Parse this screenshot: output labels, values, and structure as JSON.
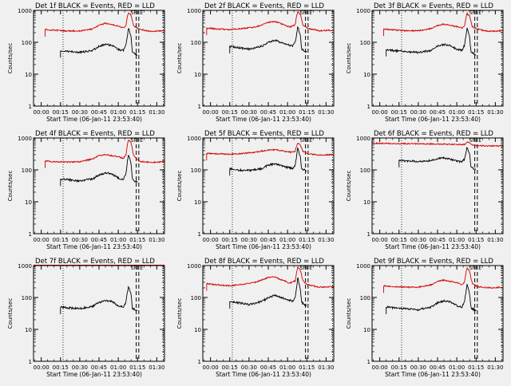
{
  "figure": {
    "background": "#f0f0f0",
    "colors": {
      "events": "#000000",
      "lld": "#d40000",
      "axes": "#000000"
    }
  },
  "chart_data": [
    {
      "type": "line",
      "title": "Det 1f BLACK = Events, RED = LLD",
      "xlabel": "Start Time (06-Jan-11 23:53:40)",
      "ylabel": "Counts/sec",
      "y_scale": "log",
      "ylim": [
        1,
        1000
      ],
      "y_ticks": [
        "1",
        "10",
        "100",
        "1000"
      ],
      "x_tick_labels": [
        "00:00",
        "00:15",
        "00:30",
        "00:45",
        "01:00",
        "01:15",
        "01:30"
      ],
      "xlim_minutes": [
        -6,
        96
      ],
      "marker_labels": [
        "SF",
        "E"
      ],
      "vertical_dotted_min": [
        17,
        95
      ],
      "vertical_dashed_min": [
        74,
        76
      ],
      "series": [
        {
          "name": "LLD",
          "color": "#d40000",
          "x": [
            3,
            10,
            20,
            30,
            40,
            45,
            50,
            60,
            64,
            66,
            67,
            68,
            70,
            72,
            76,
            85,
            96
          ],
          "y": [
            250,
            240,
            225,
            225,
            260,
            340,
            390,
            320,
            280,
            330,
            600,
            850,
            700,
            320,
            260,
            220,
            230
          ]
        },
        {
          "name": "Events",
          "color": "#000000",
          "x": [
            15,
            20,
            30,
            40,
            45,
            50,
            55,
            60,
            64,
            66,
            67,
            68,
            70,
            71,
            73,
            75
          ],
          "y": [
            55,
            52,
            48,
            55,
            75,
            85,
            80,
            60,
            55,
            80,
            150,
            280,
            140,
            50,
            45,
            40
          ]
        }
      ]
    },
    {
      "type": "line",
      "title": "Det 2f BLACK = Events, RED = LLD",
      "xlabel": "Start Time (06-Jan-11 23:53:40)",
      "ylabel": "Counts/sec",
      "y_scale": "log",
      "ylim": [
        1,
        1000
      ],
      "y_ticks": [
        "1",
        "10",
        "100",
        "1000"
      ],
      "x_tick_labels": [
        "00:00",
        "00:15",
        "00:30",
        "00:45",
        "01:00",
        "01:15",
        "01:30"
      ],
      "xlim_minutes": [
        -6,
        96
      ],
      "marker_labels": [
        "SF",
        "E"
      ],
      "vertical_dotted_min": [
        17,
        95
      ],
      "vertical_dashed_min": [
        74,
        76
      ],
      "series": [
        {
          "name": "LLD",
          "color": "#d40000",
          "x": [
            -3,
            5,
            15,
            25,
            35,
            45,
            50,
            55,
            62,
            66,
            67,
            68,
            70,
            72,
            76,
            85,
            96
          ],
          "y": [
            280,
            260,
            250,
            270,
            300,
            420,
            450,
            380,
            300,
            350,
            650,
            900,
            750,
            350,
            270,
            230,
            240
          ]
        },
        {
          "name": "Events",
          "color": "#000000",
          "x": [
            15,
            20,
            30,
            40,
            45,
            50,
            55,
            60,
            64,
            66,
            67,
            68,
            70,
            71,
            73,
            75
          ],
          "y": [
            75,
            70,
            60,
            75,
            100,
            115,
            100,
            85,
            75,
            100,
            180,
            320,
            160,
            60,
            55,
            50
          ]
        }
      ]
    },
    {
      "type": "line",
      "title": "Det 3f BLACK = Events, RED = LLD",
      "xlabel": "Start Time (06-Jan-11 23:53:40)",
      "ylabel": "Counts/sec",
      "y_scale": "log",
      "ylim": [
        1,
        1000
      ],
      "y_ticks": [
        "1",
        "10",
        "100",
        "1000"
      ],
      "x_tick_labels": [
        "00:00",
        "00:15",
        "00:30",
        "00:45",
        "01:00",
        "01:15",
        "01:30"
      ],
      "xlim_minutes": [
        -6,
        96
      ],
      "marker_labels": [
        "SF",
        "E"
      ],
      "vertical_dotted_min": [
        17,
        95
      ],
      "vertical_dashed_min": [
        74,
        76
      ],
      "series": [
        {
          "name": "LLD",
          "color": "#d40000",
          "x": [
            3,
            10,
            20,
            30,
            40,
            45,
            50,
            60,
            64,
            66,
            67,
            68,
            70,
            72,
            76,
            85,
            96
          ],
          "y": [
            260,
            245,
            230,
            230,
            270,
            330,
            370,
            310,
            280,
            320,
            550,
            800,
            650,
            310,
            260,
            220,
            230
          ]
        },
        {
          "name": "Events",
          "color": "#000000",
          "x": [
            5,
            10,
            20,
            30,
            40,
            45,
            50,
            55,
            60,
            64,
            66,
            67,
            68,
            70,
            71,
            73,
            75
          ],
          "y": [
            60,
            55,
            52,
            48,
            55,
            75,
            85,
            80,
            60,
            55,
            80,
            150,
            280,
            140,
            50,
            45,
            40
          ]
        }
      ]
    },
    {
      "type": "line",
      "title": "Det 4f BLACK = Events, RED = LLD",
      "xlabel": "Start Time (06-Jan-11 23:53:40)",
      "ylabel": "Counts/sec",
      "y_scale": "log",
      "ylim": [
        1,
        1000
      ],
      "y_ticks": [
        "1",
        "10",
        "100",
        "1000"
      ],
      "x_tick_labels": [
        "00:00",
        "00:15",
        "00:30",
        "00:45",
        "01:00",
        "01:15",
        "01:30"
      ],
      "xlim_minutes": [
        -6,
        96
      ],
      "marker_labels": [
        "SF",
        "E"
      ],
      "vertical_dotted_min": [
        17,
        95
      ],
      "vertical_dashed_min": [
        74,
        76
      ],
      "series": [
        {
          "name": "LLD",
          "color": "#d40000",
          "x": [
            3,
            10,
            20,
            30,
            40,
            45,
            50,
            60,
            64,
            66,
            67,
            68,
            70,
            72,
            76,
            85,
            96
          ],
          "y": [
            190,
            180,
            175,
            180,
            220,
            280,
            300,
            260,
            230,
            300,
            600,
            880,
            700,
            280,
            190,
            170,
            180
          ]
        },
        {
          "name": "Events",
          "color": "#000000",
          "x": [
            15,
            20,
            30,
            40,
            45,
            50,
            55,
            60,
            64,
            66,
            67,
            68,
            70,
            71,
            73,
            75
          ],
          "y": [
            52,
            50,
            45,
            52,
            70,
            80,
            75,
            55,
            50,
            80,
            170,
            320,
            150,
            50,
            45,
            40
          ]
        }
      ]
    },
    {
      "type": "line",
      "title": "Det 5f BLACK = Events, RED = LLD",
      "xlabel": "Start Time (06-Jan-11 23:53:40)",
      "ylabel": "Counts/sec",
      "y_scale": "log",
      "ylim": [
        1,
        1000
      ],
      "y_ticks": [
        "1",
        "10",
        "100",
        "1000"
      ],
      "x_tick_labels": [
        "00:00",
        "00:15",
        "00:30",
        "00:45",
        "01:00",
        "01:15",
        "01:30"
      ],
      "xlim_minutes": [
        -6,
        96
      ],
      "marker_labels": [
        "SF",
        "E"
      ],
      "vertical_dotted_min": [
        17,
        95
      ],
      "vertical_dashed_min": [
        74,
        76
      ],
      "series": [
        {
          "name": "LLD",
          "color": "#d40000",
          "x": [
            -3,
            5,
            15,
            25,
            35,
            45,
            50,
            55,
            62,
            66,
            67,
            68,
            70,
            72,
            76,
            85,
            96
          ],
          "y": [
            330,
            320,
            310,
            330,
            360,
            420,
            430,
            400,
            360,
            380,
            550,
            700,
            600,
            380,
            320,
            290,
            300
          ]
        },
        {
          "name": "Events",
          "color": "#000000",
          "x": [
            15,
            20,
            30,
            40,
            45,
            50,
            55,
            60,
            64,
            66,
            67,
            68,
            70,
            71,
            73,
            75
          ],
          "y": [
            110,
            100,
            95,
            110,
            140,
            155,
            140,
            120,
            110,
            140,
            260,
            500,
            250,
            110,
            100,
            95
          ]
        }
      ]
    },
    {
      "type": "line",
      "title": "Det 6f BLACK = Events, RED = LLD",
      "xlabel": "Start Time (06-Jan-11 23:53:40)",
      "ylabel": "Counts/sec",
      "y_scale": "log",
      "ylim": [
        1,
        1000
      ],
      "y_ticks": [
        "1",
        "10",
        "100",
        "1000"
      ],
      "x_tick_labels": [
        "00:00",
        "00:15",
        "00:30",
        "00:45",
        "01:00",
        "01:15",
        "01:30"
      ],
      "xlim_minutes": [
        -6,
        96
      ],
      "marker_labels": [
        "SF",
        "E"
      ],
      "vertical_dotted_min": [
        17,
        95
      ],
      "vertical_dashed_min": [
        74,
        76
      ],
      "series": [
        {
          "name": "LLD",
          "color": "#d40000",
          "x": [
            -6,
            10,
            30,
            50,
            62,
            66,
            67,
            68,
            70,
            72,
            76,
            85,
            96
          ],
          "y": [
            680,
            670,
            660,
            640,
            620,
            620,
            680,
            760,
            700,
            600,
            580,
            560,
            560
          ]
        },
        {
          "name": "Events",
          "color": "#000000",
          "x": [
            15,
            20,
            30,
            40,
            45,
            50,
            55,
            60,
            64,
            66,
            67,
            68,
            70,
            71,
            73,
            75
          ],
          "y": [
            200,
            190,
            185,
            195,
            225,
            235,
            220,
            190,
            180,
            210,
            320,
            520,
            300,
            130,
            110,
            100
          ]
        }
      ]
    },
    {
      "type": "line",
      "title": "Det 7f BLACK = Events, RED = LLD",
      "xlabel": "Start Time (06-Jan-11 23:53:40)",
      "ylabel": "Counts/sec",
      "y_scale": "log",
      "ylim": [
        1,
        1000
      ],
      "y_ticks": [
        "1",
        "10",
        "100",
        "1000"
      ],
      "x_tick_labels": [
        "00:00",
        "00:15",
        "00:30",
        "00:45",
        "01:00",
        "01:15",
        "01:30"
      ],
      "xlim_minutes": [
        -6,
        96
      ],
      "marker_labels": [
        "SF",
        "E"
      ],
      "vertical_dotted_min": [
        17,
        95
      ],
      "vertical_dashed_min": [
        74,
        76
      ],
      "series": [
        {
          "name": "LLD",
          "color": "#d40000",
          "x": [
            -6,
            10,
            30,
            50,
            66,
            68,
            70,
            76,
            96
          ],
          "y": [
            1150,
            1120,
            1100,
            1150,
            1200,
            1400,
            1250,
            1100,
            1100
          ]
        },
        {
          "name": "Events",
          "color": "#000000",
          "x": [
            15,
            20,
            30,
            40,
            45,
            50,
            55,
            60,
            64,
            66,
            67,
            68,
            70,
            71,
            73,
            75
          ],
          "y": [
            50,
            48,
            45,
            52,
            70,
            80,
            75,
            55,
            50,
            70,
            140,
            220,
            120,
            45,
            42,
            40
          ]
        }
      ]
    },
    {
      "type": "line",
      "title": "Det 8f BLACK = Events, RED = LLD",
      "xlabel": "Start Time (06-Jan-11 23:53:40)",
      "ylabel": "Counts/sec",
      "y_scale": "log",
      "ylim": [
        1,
        1000
      ],
      "y_ticks": [
        "1",
        "10",
        "100",
        "1000"
      ],
      "x_tick_labels": [
        "00:00",
        "00:15",
        "00:30",
        "00:45",
        "01:00",
        "01:15",
        "01:30"
      ],
      "xlim_minutes": [
        -6,
        96
      ],
      "marker_labels": [
        "SF",
        "E"
      ],
      "vertical_dotted_min": [
        17,
        95
      ],
      "vertical_dashed_min": [
        74,
        76
      ],
      "series": [
        {
          "name": "LLD",
          "color": "#d40000",
          "x": [
            -3,
            5,
            15,
            25,
            35,
            45,
            50,
            55,
            62,
            66,
            67,
            68,
            70,
            72,
            76,
            85,
            96
          ],
          "y": [
            270,
            250,
            230,
            260,
            300,
            420,
            440,
            360,
            280,
            330,
            620,
            900,
            720,
            320,
            250,
            210,
            220
          ]
        },
        {
          "name": "Events",
          "color": "#000000",
          "x": [
            15,
            20,
            30,
            40,
            45,
            50,
            55,
            60,
            64,
            66,
            67,
            68,
            70,
            71,
            73,
            75
          ],
          "y": [
            75,
            70,
            60,
            75,
            100,
            115,
            100,
            85,
            75,
            100,
            200,
            420,
            180,
            70,
            60,
            55
          ]
        }
      ]
    },
    {
      "type": "line",
      "title": "Det 9f BLACK = Events, RED = LLD",
      "xlabel": "Start Time (06-Jan-11 23:53:40)",
      "ylabel": "Counts/sec",
      "y_scale": "log",
      "ylim": [
        1,
        1000
      ],
      "y_ticks": [
        "1",
        "10",
        "100",
        "1000"
      ],
      "x_tick_labels": [
        "00:00",
        "00:15",
        "00:30",
        "00:45",
        "01:00",
        "01:15",
        "01:30"
      ],
      "xlim_minutes": [
        -6,
        96
      ],
      "marker_labels": [
        "SF",
        "E"
      ],
      "vertical_dotted_min": [
        17,
        95
      ],
      "vertical_dashed_min": [
        74,
        76
      ],
      "series": [
        {
          "name": "LLD",
          "color": "#d40000",
          "x": [
            3,
            10,
            20,
            30,
            40,
            45,
            50,
            60,
            64,
            66,
            67,
            68,
            70,
            72,
            76,
            85,
            96
          ],
          "y": [
            230,
            220,
            210,
            210,
            250,
            320,
            350,
            290,
            250,
            300,
            560,
            820,
            650,
            280,
            220,
            200,
            210
          ]
        },
        {
          "name": "Events",
          "color": "#000000",
          "x": [
            5,
            10,
            20,
            30,
            40,
            45,
            50,
            55,
            60,
            64,
            66,
            67,
            68,
            70,
            71,
            73,
            75
          ],
          "y": [
            50,
            48,
            45,
            42,
            50,
            68,
            78,
            72,
            55,
            50,
            75,
            140,
            260,
            130,
            48,
            42,
            40
          ]
        }
      ]
    }
  ]
}
